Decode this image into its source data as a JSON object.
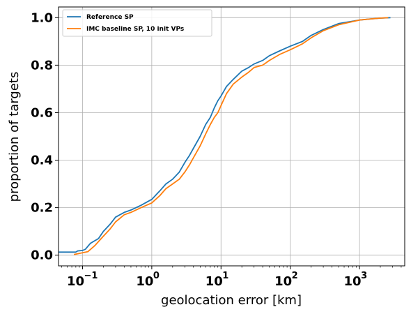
{
  "chart_data": {
    "type": "line",
    "xlabel": "geolocation error [km]",
    "ylabel": "proportion of targets",
    "xscale": "log",
    "xlim": [
      0.045,
      4500
    ],
    "ylim": [
      -0.045,
      1.045
    ],
    "xticks": [
      {
        "value": 0.1,
        "base": "10",
        "exp": "−1"
      },
      {
        "value": 1,
        "base": "10",
        "exp": "0"
      },
      {
        "value": 10,
        "base": "10",
        "exp": "1"
      },
      {
        "value": 100,
        "base": "10",
        "exp": "2"
      },
      {
        "value": 1000,
        "base": "10",
        "exp": "3"
      }
    ],
    "yticks": [
      "0.0",
      "0.2",
      "0.4",
      "0.6",
      "0.8",
      "1.0"
    ],
    "grid": true,
    "legend_position": "top-left",
    "series": [
      {
        "name": "Reference SP",
        "color": "#1f77b4",
        "points": [
          [
            0.045,
            0.013
          ],
          [
            0.08,
            0.013
          ],
          [
            0.085,
            0.018
          ],
          [
            0.1,
            0.02
          ],
          [
            0.11,
            0.025
          ],
          [
            0.13,
            0.05
          ],
          [
            0.17,
            0.07
          ],
          [
            0.2,
            0.1
          ],
          [
            0.25,
            0.13
          ],
          [
            0.3,
            0.16
          ],
          [
            0.4,
            0.18
          ],
          [
            0.5,
            0.19
          ],
          [
            0.7,
            0.21
          ],
          [
            1.0,
            0.235
          ],
          [
            1.3,
            0.27
          ],
          [
            1.6,
            0.3
          ],
          [
            2.0,
            0.32
          ],
          [
            2.5,
            0.35
          ],
          [
            3.0,
            0.39
          ],
          [
            3.5,
            0.42
          ],
          [
            4.0,
            0.45
          ],
          [
            5.0,
            0.5
          ],
          [
            6.0,
            0.55
          ],
          [
            7.0,
            0.58
          ],
          [
            8.0,
            0.62
          ],
          [
            9.0,
            0.65
          ],
          [
            10.0,
            0.67
          ],
          [
            12.0,
            0.71
          ],
          [
            15.0,
            0.74
          ],
          [
            20.0,
            0.775
          ],
          [
            25.0,
            0.79
          ],
          [
            30.0,
            0.805
          ],
          [
            40.0,
            0.82
          ],
          [
            50.0,
            0.84
          ],
          [
            70.0,
            0.86
          ],
          [
            100.0,
            0.88
          ],
          [
            150.0,
            0.9
          ],
          [
            200.0,
            0.925
          ],
          [
            300.0,
            0.95
          ],
          [
            500.0,
            0.975
          ],
          [
            1000.0,
            0.99
          ],
          [
            1500.0,
            0.995
          ],
          [
            2000.0,
            0.998
          ],
          [
            2800.0,
            1.0
          ]
        ]
      },
      {
        "name": "IMC baseline SP, 10 init VPs",
        "color": "#ff7f0e",
        "points": [
          [
            0.075,
            0.003
          ],
          [
            0.1,
            0.01
          ],
          [
            0.12,
            0.015
          ],
          [
            0.15,
            0.04
          ],
          [
            0.2,
            0.08
          ],
          [
            0.25,
            0.11
          ],
          [
            0.3,
            0.14
          ],
          [
            0.4,
            0.17
          ],
          [
            0.5,
            0.18
          ],
          [
            0.7,
            0.2
          ],
          [
            1.0,
            0.22
          ],
          [
            1.3,
            0.25
          ],
          [
            1.6,
            0.28
          ],
          [
            2.0,
            0.3
          ],
          [
            2.5,
            0.32
          ],
          [
            3.0,
            0.35
          ],
          [
            3.5,
            0.38
          ],
          [
            4.0,
            0.41
          ],
          [
            5.0,
            0.46
          ],
          [
            6.0,
            0.51
          ],
          [
            7.0,
            0.55
          ],
          [
            8.0,
            0.58
          ],
          [
            9.0,
            0.6
          ],
          [
            10.0,
            0.63
          ],
          [
            12.0,
            0.68
          ],
          [
            15.0,
            0.72
          ],
          [
            20.0,
            0.75
          ],
          [
            25.0,
            0.77
          ],
          [
            30.0,
            0.79
          ],
          [
            40.0,
            0.8
          ],
          [
            50.0,
            0.82
          ],
          [
            70.0,
            0.845
          ],
          [
            100.0,
            0.865
          ],
          [
            150.0,
            0.89
          ],
          [
            200.0,
            0.915
          ],
          [
            300.0,
            0.945
          ],
          [
            500.0,
            0.97
          ],
          [
            1000.0,
            0.99
          ],
          [
            1500.0,
            0.995
          ],
          [
            2000.0,
            0.998
          ],
          [
            2600.0,
            1.0
          ]
        ]
      }
    ]
  }
}
